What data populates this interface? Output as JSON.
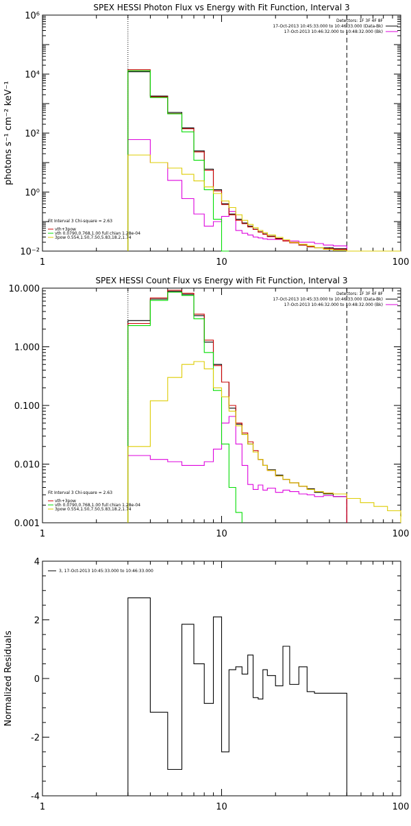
{
  "chart_data": [
    {
      "type": "line",
      "title": "SPEX HESSI Photon Flux vs Energy with Fit Function, Interval 3",
      "ylabel": "photons s⁻¹ cm⁻² keV⁻¹",
      "xlabel": "",
      "x_scale": "log",
      "y_scale": "log",
      "xlim": [
        1,
        100
      ],
      "ylim": [
        0.01,
        1000000
      ],
      "x_ticks": [
        1,
        10,
        100
      ],
      "x_tick_labels": [
        "1",
        "10",
        "100"
      ],
      "y_ticks": [
        0.01,
        1,
        100,
        10000,
        1000000
      ],
      "y_tick_labels": [
        "10⁻²",
        "10⁰",
        "10²",
        "10⁴",
        "10⁶"
      ],
      "legend_header": [
        "Detectors: 1F 3F 4F 8F",
        "17-Oct-2013 10:45:33.000 to 10:46:33.000 (Data-Bk)",
        "17-Oct-2013 10:46:32.000 to 10:48:32.000 (Bk)"
      ],
      "fit_legend": [
        "Fit Interval 3   Chi-square = 2.63",
        "vth+3pow",
        "vth 0.0790,0.768,1.00  full chian 1.28e-04",
        "3pow 0.554,1.50,7.50,5.83,18.2,1.74"
      ],
      "vlines": [
        {
          "x": 3,
          "style": "dotted"
        },
        {
          "x": 50,
          "style": "dashed"
        }
      ],
      "bin_edges": [
        3,
        4,
        5,
        6,
        7,
        8,
        9,
        10,
        11,
        12,
        13,
        14,
        15,
        16,
        17,
        18,
        20,
        22,
        24,
        27,
        30,
        33,
        37,
        42,
        50
      ],
      "series": [
        {
          "name": "Data-Bk",
          "color": "#000000",
          "values": [
            12000,
            1800,
            500,
            150,
            25,
            6,
            1.2,
            0.4,
            0.18,
            0.12,
            0.09,
            0.07,
            0.055,
            0.045,
            0.038,
            0.032,
            0.027,
            0.023,
            0.019,
            0.016,
            0.014,
            0.013,
            0.013,
            0.012
          ]
        },
        {
          "name": "Bk",
          "color": "#dd00dd",
          "values": [
            60,
            10,
            2.5,
            0.6,
            0.18,
            0.07,
            0.1,
            0.15,
            0.22,
            0.05,
            0.04,
            0.035,
            0.03,
            0.028,
            0.026,
            0.025,
            0.025,
            0.023,
            0.022,
            0.02,
            0.02,
            0.018,
            0.016,
            0.015
          ]
        },
        {
          "name": "vth+3pow",
          "color": "#cc0000",
          "values": [
            14000,
            1700,
            460,
            140,
            23,
            5.5,
            1.1,
            0.38,
            0.17,
            0.11,
            0.085,
            0.066,
            0.054,
            0.044,
            0.037,
            0.031,
            0.026,
            0.022,
            0.019,
            0.016,
            0.014,
            0.013,
            0.012,
            0.0115
          ]
        },
        {
          "name": "vth",
          "color": "#00dd00",
          "values": [
            13000,
            1600,
            450,
            110,
            12,
            1.2,
            0.12,
            0.005
          ]
        },
        {
          "name": "3pow",
          "color": "#ddcc00",
          "values": [
            18,
            10,
            6.5,
            4,
            2.4,
            1.5,
            0.9,
            0.5,
            0.3,
            0.17,
            0.11,
            0.08,
            0.062,
            0.05,
            0.042,
            0.035,
            0.029,
            0.024,
            0.02,
            0.017,
            0.015,
            0.013,
            0.0115,
            0.0105,
            0.0095,
            0.0085,
            0.0078,
            0.007
          ]
        }
      ]
    },
    {
      "type": "line",
      "title": "SPEX HESSI Count Flux vs Energy with Fit Function, Interval 3",
      "xlabel": "",
      "ylabel": "",
      "x_scale": "log",
      "y_scale": "log",
      "xlim": [
        1,
        100
      ],
      "ylim": [
        0.001,
        10
      ],
      "x_ticks": [
        1,
        10,
        100
      ],
      "x_tick_labels": [
        "1",
        "10",
        "100"
      ],
      "y_ticks": [
        0.001,
        0.01,
        0.1,
        1,
        10
      ],
      "y_tick_labels": [
        "0.001",
        "0.010",
        "0.100",
        "1.000",
        "10.000"
      ],
      "legend_header": [
        "Detectors: 1F 3F 4F 8F",
        "17-Oct-2013 10:45:33.000 to 10:46:33.000 (Data-Bk)",
        "17-Oct-2013 10:46:32.000 to 10:48:32.000 (Bk)"
      ],
      "fit_legend": [
        "Fit Interval 3   Chi-square = 2.63",
        "vth+3pow",
        "vth 0.0790,0.768,1.00  full chian 1.28e-04",
        "3pow 0.554,1.50,7.50,5.83,18.2,1.74"
      ],
      "vlines": [
        {
          "x": 3,
          "style": "dotted"
        },
        {
          "x": 50,
          "style": "dashed"
        }
      ],
      "bin_edges": [
        3,
        4,
        5,
        6,
        7,
        8,
        9,
        10,
        11,
        12,
        13,
        14,
        15,
        16,
        17,
        18,
        20,
        22,
        24,
        27,
        30,
        33,
        37,
        42,
        50
      ],
      "series": [
        {
          "name": "Data-Bk",
          "color": "#000000",
          "values": [
            2.8,
            6.5,
            8.8,
            7.8,
            3.4,
            1.2,
            0.5,
            0.25,
            0.09,
            0.048,
            0.032,
            0.022,
            0.016,
            0.012,
            0.0095,
            0.008,
            0.0065,
            0.0055,
            0.0048,
            0.0042,
            0.0038,
            0.0033,
            0.0031,
            0.0028
          ]
        },
        {
          "name": "Bk",
          "color": "#dd00dd",
          "values": [
            0.014,
            0.012,
            0.011,
            0.0095,
            0.0095,
            0.011,
            0.018,
            0.05,
            0.065,
            0.022,
            0.0095,
            0.0045,
            0.0037,
            0.0044,
            0.0036,
            0.0039,
            0.0033,
            0.0036,
            0.0034,
            0.0031,
            0.003,
            0.0028,
            0.0029,
            0.0028
          ]
        },
        {
          "name": "vth+3pow",
          "color": "#cc0000",
          "values": [
            2.5,
            6.8,
            9.2,
            8.2,
            3.6,
            1.3,
            0.48,
            0.25,
            0.1,
            0.05,
            0.034,
            0.024,
            0.017,
            0.012,
            0.0095,
            0.0078,
            0.0063,
            0.0055,
            0.0048,
            0.0042,
            0.0037,
            0.0034,
            0.0032,
            0.0031
          ]
        },
        {
          "name": "vth",
          "color": "#00dd00",
          "values": [
            2.3,
            6.2,
            8.5,
            7.5,
            3.0,
            0.8,
            0.18,
            0.022,
            0.004,
            0.0015
          ]
        },
        {
          "name": "3pow",
          "color": "#ddcc00",
          "values": [
            0.02,
            0.12,
            0.3,
            0.5,
            0.56,
            0.42,
            0.2,
            0.14,
            0.08,
            0.045,
            0.032,
            0.022,
            0.016,
            0.012,
            0.0095,
            0.0078,
            0.0063,
            0.0055,
            0.0048,
            0.0042,
            0.0037,
            0.0034,
            0.0032,
            0.0031,
            0.0026,
            0.0022,
            0.0019,
            0.0016,
            0.0013
          ]
        }
      ]
    },
    {
      "type": "line",
      "title": "",
      "ylabel": "Normalized Residuals",
      "xlabel": "",
      "x_scale": "log",
      "y_scale": "linear",
      "xlim": [
        1,
        100
      ],
      "ylim": [
        -4,
        4
      ],
      "x_ticks": [
        1,
        10,
        100
      ],
      "x_tick_labels": [
        "1",
        "10",
        "100"
      ],
      "y_ticks": [
        -4,
        -2,
        0,
        2,
        4
      ],
      "y_tick_labels": [
        "-4",
        "-2",
        "0",
        "2",
        "4"
      ],
      "legend": [
        "3, 17-Oct-2013 10:45:33.000 to 10:46:33.000"
      ],
      "bin_edges": [
        3,
        4,
        5,
        6,
        7,
        8,
        9,
        10,
        11,
        12,
        13,
        14,
        15,
        16,
        17,
        18,
        20,
        22,
        24,
        27,
        30,
        33,
        37,
        42,
        50
      ],
      "series": [
        {
          "name": "3, 17-Oct-2013 10:45:33.000 to 10:46:33.000",
          "color": "#000000",
          "values": [
            2.75,
            -1.15,
            -3.1,
            1.85,
            0.5,
            -0.85,
            2.1,
            -2.5,
            0.3,
            0.4,
            0.15,
            0.8,
            -0.65,
            -0.7,
            0.3,
            0.1,
            -0.25,
            1.1,
            -0.2,
            0.4,
            -0.45,
            -0.5,
            -0.5,
            -0.5
          ]
        }
      ]
    }
  ]
}
